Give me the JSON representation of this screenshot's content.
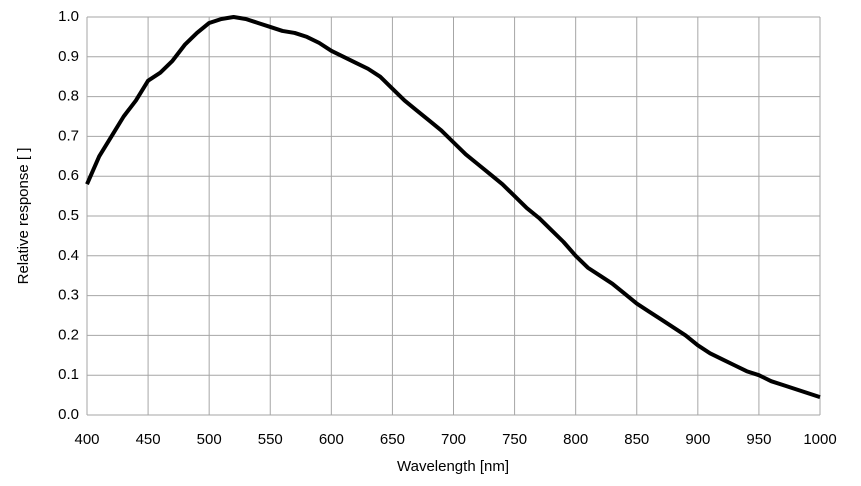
{
  "chart_data": {
    "type": "line",
    "x_label": "Wavelength [nm]",
    "y_label": "Relative response [ ]",
    "x": [
      400,
      410,
      420,
      430,
      440,
      450,
      460,
      470,
      480,
      490,
      500,
      510,
      520,
      530,
      540,
      550,
      560,
      570,
      580,
      590,
      600,
      610,
      620,
      630,
      640,
      650,
      660,
      670,
      680,
      690,
      700,
      710,
      720,
      730,
      740,
      750,
      760,
      770,
      780,
      790,
      800,
      810,
      820,
      830,
      840,
      850,
      860,
      870,
      880,
      890,
      900,
      910,
      920,
      930,
      940,
      950,
      960,
      970,
      980,
      990,
      1000
    ],
    "values": [
      0.58,
      0.65,
      0.7,
      0.75,
      0.79,
      0.84,
      0.86,
      0.89,
      0.93,
      0.96,
      0.985,
      0.995,
      1.0,
      0.995,
      0.985,
      0.975,
      0.965,
      0.96,
      0.95,
      0.935,
      0.915,
      0.9,
      0.885,
      0.87,
      0.85,
      0.82,
      0.79,
      0.765,
      0.74,
      0.715,
      0.685,
      0.655,
      0.63,
      0.605,
      0.58,
      0.55,
      0.52,
      0.495,
      0.465,
      0.435,
      0.4,
      0.37,
      0.35,
      0.33,
      0.305,
      0.28,
      0.26,
      0.24,
      0.22,
      0.2,
      0.175,
      0.155,
      0.14,
      0.125,
      0.11,
      0.1,
      0.085,
      0.075,
      0.065,
      0.055,
      0.045
    ],
    "color": "#000000",
    "xlim": [
      400,
      1000
    ],
    "xticks": [
      400,
      450,
      500,
      550,
      600,
      650,
      700,
      750,
      800,
      850,
      900,
      950,
      1000
    ],
    "ylim": [
      0,
      1
    ],
    "yticks": [
      {
        "value": 0,
        "label": "0.0"
      },
      {
        "value": 0.1,
        "label": "0.1"
      },
      {
        "value": 0.2,
        "label": "0.2"
      },
      {
        "value": 0.3,
        "label": "0.3"
      },
      {
        "value": 0.4,
        "label": "0.4"
      },
      {
        "value": 0.5,
        "label": "0.5"
      },
      {
        "value": 0.6,
        "label": "0.6"
      },
      {
        "value": 0.7,
        "label": "0.7"
      },
      {
        "value": 0.8,
        "label": "0.8"
      },
      {
        "value": 0.9,
        "label": "0.9"
      },
      {
        "value": 1,
        "label": "1.0"
      }
    ],
    "grid": true
  }
}
